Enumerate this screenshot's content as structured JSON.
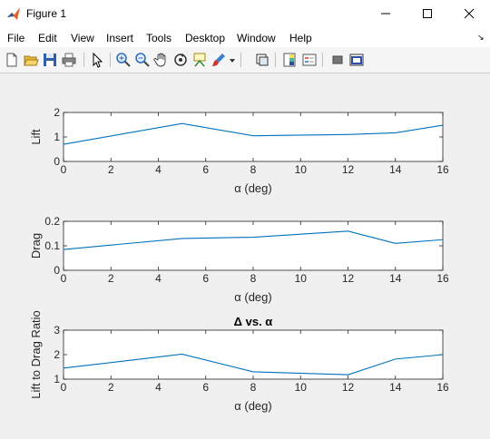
{
  "window": {
    "title": "Figure 1"
  },
  "menu": [
    "File",
    "Edit",
    "View",
    "Insert",
    "Tools",
    "Desktop",
    "Window",
    "Help"
  ],
  "toolbar_icons": [
    "new-figure-icon",
    "open-file-icon",
    "save-icon",
    "print-icon",
    "select-arrow-icon",
    "zoom-in-icon",
    "zoom-out-icon",
    "pan-hand-icon",
    "rotate-3d-icon",
    "data-cursor-icon",
    "brush-icon",
    "brush-dropdown-icon",
    "link-plot-icon",
    "colorbar-icon",
    "legend-icon",
    "hide-plot-tools-icon",
    "show-plot-tools-icon"
  ],
  "colors": {
    "line": "#0072bd",
    "axes_bg": "#ffffff",
    "figure_bg": "#f0f0f0"
  },
  "chart_data": [
    {
      "type": "line",
      "title": "",
      "xlabel": "α (deg)",
      "ylabel": "Lift",
      "xlim": [
        0,
        16
      ],
      "ylim": [
        0,
        2
      ],
      "xticks": [
        0,
        2,
        4,
        6,
        8,
        10,
        12,
        14,
        16
      ],
      "yticks": [
        0,
        1,
        2
      ],
      "ytick_labels": [
        "0",
        "1",
        "2"
      ],
      "x": [
        0,
        5,
        8,
        12,
        14,
        16
      ],
      "y": [
        0.7,
        1.55,
        1.05,
        1.1,
        1.17,
        1.48
      ]
    },
    {
      "type": "line",
      "title": "",
      "xlabel": "α (deg)",
      "ylabel": "Drag",
      "xlim": [
        0,
        16
      ],
      "ylim": [
        0,
        0.2
      ],
      "xticks": [
        0,
        2,
        4,
        6,
        8,
        10,
        12,
        14,
        16
      ],
      "yticks": [
        0,
        0.1,
        0.2
      ],
      "ytick_labels": [
        "0",
        "0.1",
        "0.2"
      ],
      "x": [
        0,
        5,
        8,
        12,
        14,
        16
      ],
      "y": [
        0.085,
        0.13,
        0.135,
        0.16,
        0.11,
        0.125
      ]
    },
    {
      "type": "line",
      "title": "Δ vs. α",
      "xlabel": "α (deg)",
      "ylabel": "Lift to Drag Ratio",
      "xlim": [
        0,
        16
      ],
      "ylim": [
        1,
        3
      ],
      "xticks": [
        0,
        2,
        4,
        6,
        8,
        10,
        12,
        14,
        16
      ],
      "yticks": [
        1,
        2,
        3
      ],
      "ytick_labels": [
        "1",
        "2",
        "3"
      ],
      "x": [
        0,
        5,
        8,
        12,
        14,
        16
      ],
      "y": [
        1.45,
        2.02,
        1.3,
        1.18,
        1.82,
        2.0
      ]
    }
  ]
}
